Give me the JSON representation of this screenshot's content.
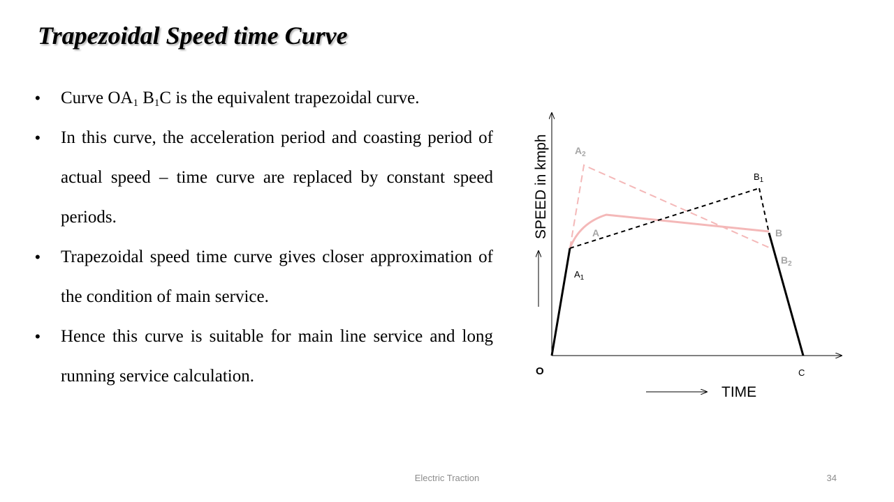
{
  "slide": {
    "title": "Trapezoidal Speed time Curve",
    "bullets": [
      {
        "parts": [
          {
            "text": "Curve OA"
          },
          {
            "text": "1",
            "sub": true
          },
          {
            "text": " B"
          },
          {
            "text": "1",
            "sub": true
          },
          {
            "text": "C is the equivalent trapezoidal curve."
          }
        ]
      },
      {
        "parts": [
          {
            "text": "In this curve, the acceleration period and coasting period of actual speed – time curve are replaced by constant speed periods."
          }
        ]
      },
      {
        "parts": [
          {
            "text": "Trapezoidal speed time curve gives closer approximation of the condition of main service."
          }
        ]
      },
      {
        "parts": [
          {
            "text": "Hence this curve is suitable for main line service and long running service calculation."
          }
        ]
      }
    ]
  },
  "diagram": {
    "y_axis_label": "SPEED in kmph",
    "x_axis_label": "TIME",
    "points": {
      "origin": "O",
      "end": "C",
      "a": "A",
      "b": "B",
      "a1": {
        "letter": "A",
        "sub": "1"
      },
      "b1": {
        "letter": "B",
        "sub": "1"
      },
      "a2": {
        "letter": "A",
        "sub": "2"
      },
      "b2": {
        "letter": "B",
        "sub": "2"
      }
    },
    "colors": {
      "trapezoidal": "#000000",
      "actual_curve": "#f4b8b8",
      "alternate_dashed": "#f4b8b8",
      "faint_labels": "#a6a6a6"
    }
  },
  "footer": {
    "center": "Electric Traction",
    "page_number": "34"
  }
}
